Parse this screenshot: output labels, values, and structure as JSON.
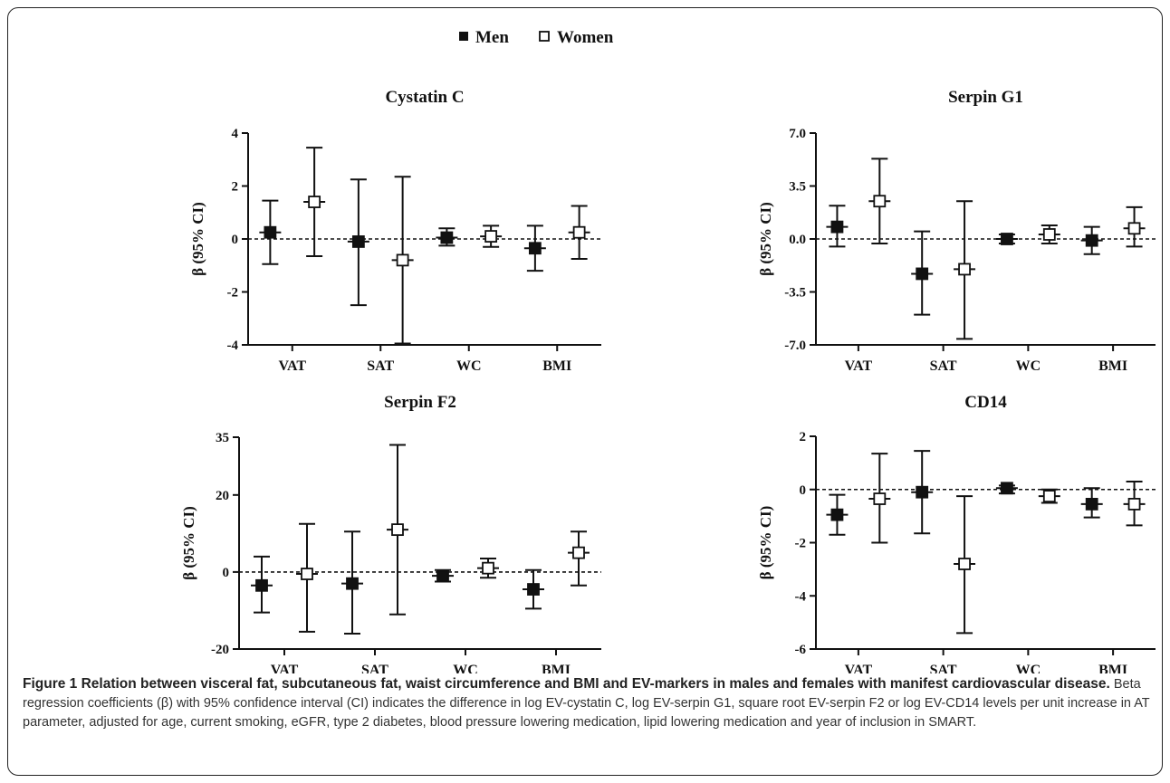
{
  "legend": {
    "men_label": "Men",
    "women_label": "Women",
    "placement": "top-center",
    "men_marker": "filled-square",
    "women_marker": "open-square"
  },
  "caption": {
    "title": "Figure 1 Relation between visceral fat, subcutaneous fat, waist circumference and BMI and EV-markers in males and females with manifest cardiovascular disease.",
    "body": "Beta regression coefficients (β) with 95% confidence interval (CI) indicates the difference in log EV-cystatin C, log EV-serpin G1, square root EV-serpin F2 or log EV-CD14 levels per unit increase in AT parameter, adjusted for age, current smoking, eGFR, type 2 diabetes, blood pressure lowering medication, lipid lowering medication and year of inclusion in SMART."
  },
  "chart_data": [
    {
      "type": "scatter",
      "title": "Cystatin C",
      "ylabel": "β (95% CI)",
      "xlabel": "",
      "categories": [
        "VAT",
        "SAT",
        "WC",
        "BMI"
      ],
      "ylim": [
        -4,
        4
      ],
      "yticks": [
        "-4",
        "-2",
        "0",
        "2",
        "4"
      ],
      "yticks_values": [
        -4,
        -2,
        0,
        2,
        4
      ],
      "reference_line": 0,
      "series": [
        {
          "name": "Men",
          "values": [
            0.25,
            -0.1,
            0.05,
            -0.35
          ],
          "lower": [
            -0.95,
            -2.5,
            -0.25,
            -1.2
          ],
          "upper": [
            1.45,
            2.25,
            0.4,
            0.5
          ]
        },
        {
          "name": "Women",
          "values": [
            1.4,
            -0.8,
            0.1,
            0.25
          ],
          "lower": [
            -0.65,
            -3.95,
            -0.3,
            -0.75
          ],
          "upper": [
            3.45,
            2.35,
            0.5,
            1.25
          ]
        }
      ]
    },
    {
      "type": "scatter",
      "title": "Serpin  G1",
      "ylabel": "β (95% CI)",
      "xlabel": "",
      "categories": [
        "VAT",
        "SAT",
        "WC",
        "BMI"
      ],
      "ylim": [
        -7,
        7
      ],
      "yticks": [
        "-7.0",
        "-3.5",
        "0.0",
        "3.5",
        "7.0"
      ],
      "yticks_values": [
        -7,
        -3.5,
        0,
        3.5,
        7
      ],
      "reference_line": 0,
      "series": [
        {
          "name": "Men",
          "values": [
            0.8,
            -2.3,
            0.0,
            -0.1
          ],
          "lower": [
            -0.5,
            -5.0,
            -0.3,
            -1.0
          ],
          "upper": [
            2.2,
            0.5,
            0.3,
            0.8
          ]
        },
        {
          "name": "Women",
          "values": [
            2.5,
            -2.0,
            0.3,
            0.7
          ],
          "lower": [
            -0.3,
            -6.6,
            -0.3,
            -0.5
          ],
          "upper": [
            5.3,
            2.5,
            0.9,
            2.1
          ]
        }
      ]
    },
    {
      "type": "scatter",
      "title": "Serpin  F2",
      "ylabel": "β (95% CI)",
      "xlabel": "",
      "categories": [
        "VAT",
        "SAT",
        "WC",
        "BMI"
      ],
      "ylim": [
        -20,
        35
      ],
      "yticks": [
        "-20",
        "0",
        "20",
        "35"
      ],
      "yticks_values": [
        -20,
        0,
        20,
        35
      ],
      "reference_line": 0,
      "series": [
        {
          "name": "Men",
          "values": [
            -3.5,
            -3.0,
            -1.0,
            -4.5
          ],
          "lower": [
            -10.5,
            -16.0,
            -2.5,
            -9.5
          ],
          "upper": [
            4.0,
            10.5,
            0.5,
            0.5
          ]
        },
        {
          "name": "Women",
          "values": [
            -0.5,
            11.0,
            1.0,
            5.0
          ],
          "lower": [
            -15.5,
            -11.0,
            -1.5,
            -3.5
          ],
          "upper": [
            12.5,
            33.0,
            3.5,
            10.5
          ]
        }
      ]
    },
    {
      "type": "scatter",
      "title": "CD14",
      "ylabel": "β (95% CI)",
      "xlabel": "",
      "categories": [
        "VAT",
        "SAT",
        "WC",
        "BMI"
      ],
      "ylim": [
        -6,
        2
      ],
      "yticks": [
        "-6",
        "-4",
        "-2",
        "0",
        "2"
      ],
      "yticks_values": [
        -6,
        -4,
        -2,
        0,
        2
      ],
      "reference_line": 0,
      "series": [
        {
          "name": "Men",
          "values": [
            -0.95,
            -0.1,
            0.05,
            -0.55
          ],
          "lower": [
            -1.7,
            -1.65,
            -0.15,
            -1.05
          ],
          "upper": [
            -0.2,
            1.45,
            0.15,
            0.05
          ]
        },
        {
          "name": "Women",
          "values": [
            -0.35,
            -2.8,
            -0.25,
            -0.55
          ],
          "lower": [
            -2.0,
            -5.4,
            -0.5,
            -1.35
          ],
          "upper": [
            1.35,
            -0.25,
            0.0,
            0.3
          ]
        }
      ]
    }
  ]
}
